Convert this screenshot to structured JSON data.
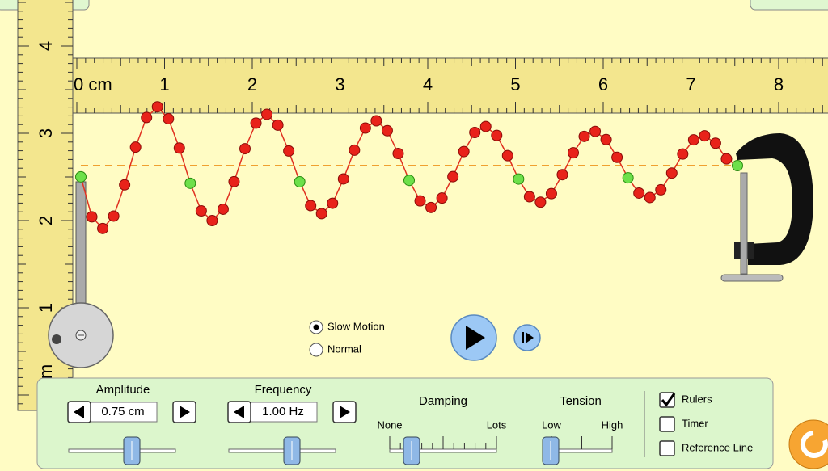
{
  "rulers": {
    "horizontal": [
      "0 cm",
      "1",
      "2",
      "3",
      "4",
      "5",
      "6",
      "7",
      "8"
    ],
    "vertical": [
      "4",
      "3",
      "2",
      "1",
      "m"
    ]
  },
  "speed": {
    "options": [
      "Slow Motion",
      "Normal"
    ]
  },
  "controls": {
    "amplitude": {
      "label": "Amplitude",
      "value": "0.75 cm"
    },
    "frequency": {
      "label": "Frequency",
      "value": "1.00 Hz"
    },
    "damping": {
      "label": "Damping",
      "min": "None",
      "max": "Lots"
    },
    "tension": {
      "label": "Tension",
      "min": "Low",
      "max": "High"
    },
    "checkboxes": [
      "Rulers",
      "Timer",
      "Reference Line"
    ]
  }
}
